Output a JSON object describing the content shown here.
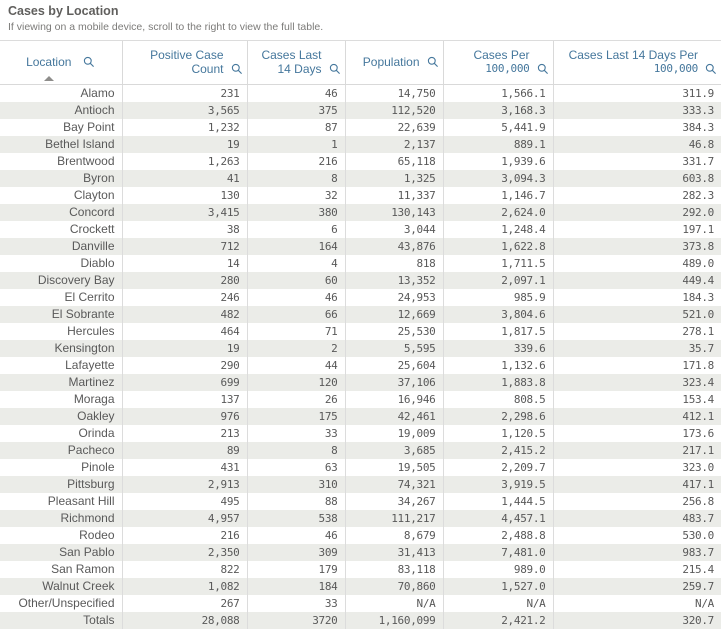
{
  "page": {
    "title": "Cases by Location",
    "subtitle": "If viewing on a mobile device, scroll to the right to view the full table."
  },
  "colors": {
    "header_accent": "#45779c",
    "row_stripe": "#ebece8",
    "cell_text": "#595959"
  },
  "table": {
    "columns": [
      {
        "id": "location",
        "label_lines": [
          "Location"
        ],
        "sorted": "ascending"
      },
      {
        "id": "positive-case-count",
        "label_lines": [
          "Positive Case",
          "Count"
        ]
      },
      {
        "id": "cases-last-14-days",
        "label_lines": [
          "Cases Last",
          "14 Days"
        ]
      },
      {
        "id": "population",
        "label_lines": [
          "Population"
        ]
      },
      {
        "id": "cases-per-100000",
        "label_lines": [
          "Cases Per",
          "100,000"
        ]
      },
      {
        "id": "cases-last-14-days-per-100000",
        "label_lines": [
          "Cases Last 14 Days Per",
          "100,000"
        ]
      }
    ],
    "rows": [
      [
        "Alamo",
        "231",
        "46",
        "14,750",
        "1,566.1",
        "311.9"
      ],
      [
        "Antioch",
        "3,565",
        "375",
        "112,520",
        "3,168.3",
        "333.3"
      ],
      [
        "Bay Point",
        "1,232",
        "87",
        "22,639",
        "5,441.9",
        "384.3"
      ],
      [
        "Bethel Island",
        "19",
        "1",
        "2,137",
        "889.1",
        "46.8"
      ],
      [
        "Brentwood",
        "1,263",
        "216",
        "65,118",
        "1,939.6",
        "331.7"
      ],
      [
        "Byron",
        "41",
        "8",
        "1,325",
        "3,094.3",
        "603.8"
      ],
      [
        "Clayton",
        "130",
        "32",
        "11,337",
        "1,146.7",
        "282.3"
      ],
      [
        "Concord",
        "3,415",
        "380",
        "130,143",
        "2,624.0",
        "292.0"
      ],
      [
        "Crockett",
        "38",
        "6",
        "3,044",
        "1,248.4",
        "197.1"
      ],
      [
        "Danville",
        "712",
        "164",
        "43,876",
        "1,622.8",
        "373.8"
      ],
      [
        "Diablo",
        "14",
        "4",
        "818",
        "1,711.5",
        "489.0"
      ],
      [
        "Discovery Bay",
        "280",
        "60",
        "13,352",
        "2,097.1",
        "449.4"
      ],
      [
        "El Cerrito",
        "246",
        "46",
        "24,953",
        "985.9",
        "184.3"
      ],
      [
        "El Sobrante",
        "482",
        "66",
        "12,669",
        "3,804.6",
        "521.0"
      ],
      [
        "Hercules",
        "464",
        "71",
        "25,530",
        "1,817.5",
        "278.1"
      ],
      [
        "Kensington",
        "19",
        "2",
        "5,595",
        "339.6",
        "35.7"
      ],
      [
        "Lafayette",
        "290",
        "44",
        "25,604",
        "1,132.6",
        "171.8"
      ],
      [
        "Martinez",
        "699",
        "120",
        "37,106",
        "1,883.8",
        "323.4"
      ],
      [
        "Moraga",
        "137",
        "26",
        "16,946",
        "808.5",
        "153.4"
      ],
      [
        "Oakley",
        "976",
        "175",
        "42,461",
        "2,298.6",
        "412.1"
      ],
      [
        "Orinda",
        "213",
        "33",
        "19,009",
        "1,120.5",
        "173.6"
      ],
      [
        "Pacheco",
        "89",
        "8",
        "3,685",
        "2,415.2",
        "217.1"
      ],
      [
        "Pinole",
        "431",
        "63",
        "19,505",
        "2,209.7",
        "323.0"
      ],
      [
        "Pittsburg",
        "2,913",
        "310",
        "74,321",
        "3,919.5",
        "417.1"
      ],
      [
        "Pleasant Hill",
        "495",
        "88",
        "34,267",
        "1,444.5",
        "256.8"
      ],
      [
        "Richmond",
        "4,957",
        "538",
        "111,217",
        "4,457.1",
        "483.7"
      ],
      [
        "Rodeo",
        "216",
        "46",
        "8,679",
        "2,488.8",
        "530.0"
      ],
      [
        "San Pablo",
        "2,350",
        "309",
        "31,413",
        "7,481.0",
        "983.7"
      ],
      [
        "San Ramon",
        "822",
        "179",
        "83,118",
        "989.0",
        "215.4"
      ],
      [
        "Walnut Creek",
        "1,082",
        "184",
        "70,860",
        "1,527.0",
        "259.7"
      ],
      [
        "Other/Unspecified",
        "267",
        "33",
        "N/A",
        "N/A",
        "N/A"
      ],
      [
        "Totals",
        "28,088",
        "3720",
        "1,160,099",
        "2,421.2",
        "320.7"
      ]
    ]
  }
}
